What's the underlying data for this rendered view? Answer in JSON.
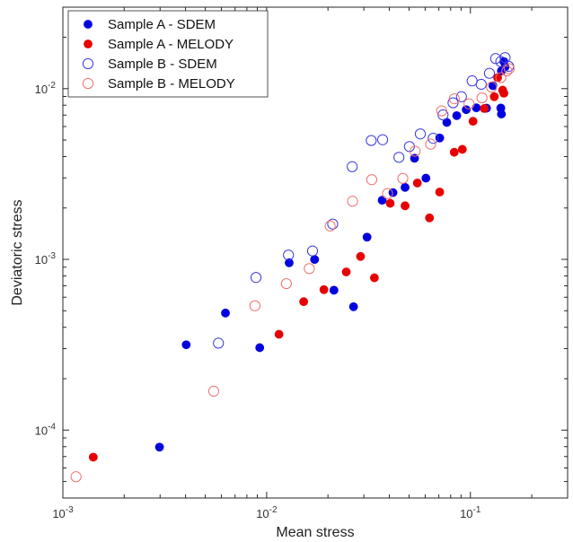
{
  "chart_data": {
    "type": "scatter",
    "title": "",
    "xlabel": "Mean stress",
    "ylabel": "Deviatoric stress",
    "xscale": "log",
    "yscale": "log",
    "xlim": [
      0.001,
      0.3
    ],
    "ylim": [
      4e-05,
      0.03
    ],
    "x_ticks": [
      0.001,
      0.01,
      0.1
    ],
    "x_tick_labels": [
      {
        "base": "10",
        "exp": "-3"
      },
      {
        "base": "10",
        "exp": "-2"
      },
      {
        "base": "10",
        "exp": "-1"
      }
    ],
    "y_ticks": [
      0.0001,
      0.001,
      0.01
    ],
    "y_tick_labels": [
      {
        "base": "10",
        "exp": "-4"
      },
      {
        "base": "10",
        "exp": "-3"
      },
      {
        "base": "10",
        "exp": "-2"
      }
    ],
    "grid": false,
    "legend_position": "top-left",
    "series": [
      {
        "name": "Sample A - SDEM",
        "color": "#0000e0",
        "marker": "filled-circle",
        "points": [
          [
            0.00298,
            7.95e-05
          ],
          [
            0.00403,
            0.000316
          ],
          [
            0.00628,
            0.000485
          ],
          [
            0.00925,
            0.000304
          ],
          [
            0.0129,
            0.000955
          ],
          [
            0.0172,
            0.000998
          ],
          [
            0.0214,
            0.00066
          ],
          [
            0.0267,
            0.000528
          ],
          [
            0.0311,
            0.00135
          ],
          [
            0.0369,
            0.00222
          ],
          [
            0.0417,
            0.00246
          ],
          [
            0.0478,
            0.00264
          ],
          [
            0.0532,
            0.00391
          ],
          [
            0.0605,
            0.00299
          ],
          [
            0.0707,
            0.00514
          ],
          [
            0.0766,
            0.00634
          ],
          [
            0.0857,
            0.00695
          ],
          [
            0.0954,
            0.00753
          ],
          [
            0.107,
            0.00772
          ],
          [
            0.12,
            0.00768
          ],
          [
            0.129,
            0.0104
          ],
          [
            0.141,
            0.0077
          ],
          [
            0.142,
            0.0071
          ],
          [
            0.142,
            0.0127
          ],
          [
            0.146,
            0.0144
          ],
          [
            0.148,
            0.0134
          ]
        ]
      },
      {
        "name": "Sample A - MELODY",
        "color": "#e80000",
        "marker": "filled-circle",
        "points": [
          [
            0.00141,
            6.94e-05
          ],
          [
            0.0115,
            0.000364
          ],
          [
            0.0152,
            0.000565
          ],
          [
            0.0191,
            0.000665
          ],
          [
            0.0246,
            0.000844
          ],
          [
            0.0289,
            0.00104
          ],
          [
            0.0338,
            0.00078
          ],
          [
            0.0404,
            0.00213
          ],
          [
            0.0478,
            0.00206
          ],
          [
            0.0549,
            0.0028
          ],
          [
            0.063,
            0.00175
          ],
          [
            0.0707,
            0.00248
          ],
          [
            0.0833,
            0.00424
          ],
          [
            0.0913,
            0.00441
          ],
          [
            0.103,
            0.00644
          ],
          [
            0.117,
            0.00765
          ],
          [
            0.131,
            0.00897
          ],
          [
            0.136,
            0.0116
          ],
          [
            0.144,
            0.0098
          ],
          [
            0.146,
            0.0094
          ]
        ]
      },
      {
        "name": "Sample B - SDEM",
        "color": "#3a3ae0",
        "marker": "open-circle",
        "points": [
          [
            0.0058,
            0.000323
          ],
          [
            0.00887,
            0.000783
          ],
          [
            0.0128,
            0.00106
          ],
          [
            0.0168,
            0.00112
          ],
          [
            0.0211,
            0.00161
          ],
          [
            0.0263,
            0.00349
          ],
          [
            0.0326,
            0.00497
          ],
          [
            0.0371,
            0.00502
          ],
          [
            0.0446,
            0.00396
          ],
          [
            0.0502,
            0.00458
          ],
          [
            0.0568,
            0.00543
          ],
          [
            0.0657,
            0.00512
          ],
          [
            0.0734,
            0.00702
          ],
          [
            0.0822,
            0.00826
          ],
          [
            0.0904,
            0.00897
          ],
          [
            0.102,
            0.0111
          ],
          [
            0.113,
            0.0106
          ],
          [
            0.124,
            0.0123
          ],
          [
            0.133,
            0.015
          ],
          [
            0.141,
            0.0144
          ],
          [
            0.148,
            0.0152
          ],
          [
            0.154,
            0.0135
          ]
        ]
      },
      {
        "name": "Sample B - MELODY",
        "color": "#f07070",
        "marker": "open-circle",
        "points": [
          [
            0.00116,
            5.33e-05
          ],
          [
            0.0055,
            0.000169
          ],
          [
            0.00876,
            0.000535
          ],
          [
            0.0125,
            0.000721
          ],
          [
            0.0162,
            0.000883
          ],
          [
            0.0205,
            0.00157
          ],
          [
            0.0264,
            0.00219
          ],
          [
            0.0328,
            0.00293
          ],
          [
            0.0392,
            0.00243
          ],
          [
            0.0466,
            0.00298
          ],
          [
            0.0535,
            0.0043
          ],
          [
            0.0638,
            0.00473
          ],
          [
            0.0723,
            0.00741
          ],
          [
            0.0834,
            0.00872
          ],
          [
            0.0985,
            0.00814
          ],
          [
            0.114,
            0.00883
          ],
          [
            0.127,
            0.0102
          ],
          [
            0.141,
            0.0116
          ],
          [
            0.151,
            0.0127
          ],
          [
            0.155,
            0.0131
          ]
        ]
      }
    ]
  }
}
